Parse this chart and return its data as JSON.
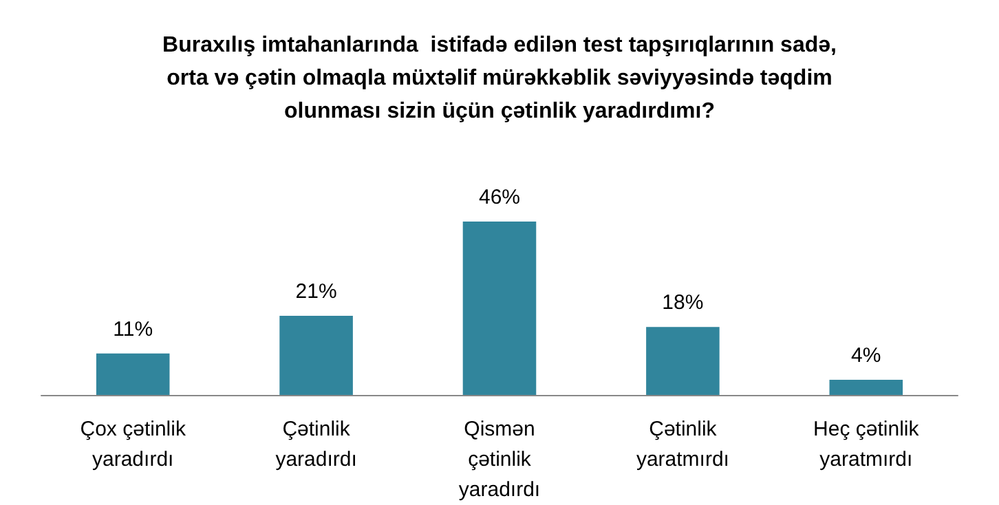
{
  "chart_data": {
    "type": "bar",
    "title": "Buraxılış imtahanlarında  istifadə edilən test tapşırıqlarının sadə, orta və çətin olmaqla müxtəlif mürəkkəblik səviyyəsində təqdim olunması sizin üçün çətinlik yaradırdımı?",
    "categories": [
      "Çox çətinlik yaradırdı",
      "Çətinlik yaradırdı",
      "Qismən çətinlik yaradırdı",
      "Çətinlik yaratmırdı",
      "Heç çətinlik yaratmırdı"
    ],
    "values": [
      11,
      21,
      46,
      18,
      4
    ],
    "value_labels": [
      "11%",
      "21%",
      "46%",
      "18%",
      "4%"
    ],
    "color": "#31859c"
  }
}
